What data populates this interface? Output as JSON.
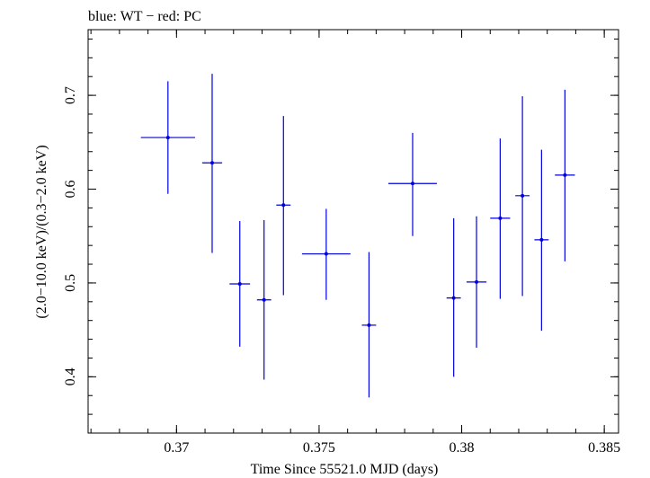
{
  "chart_data": {
    "type": "scatter",
    "title": "blue: WT − red: PC",
    "xlabel": "Time Since 55521.0 MJD (days)",
    "ylabel": "(2.0−10.0 keV)/(0.3−2.0 keV)",
    "xlim": [
      0.3669,
      0.3855
    ],
    "ylim": [
      0.34,
      0.77
    ],
    "x_ticks": [
      {
        "value": 0.37,
        "label": "0.37"
      },
      {
        "value": 0.375,
        "label": "0.375"
      },
      {
        "value": 0.38,
        "label": "0.38"
      },
      {
        "value": 0.385,
        "label": "0.385"
      }
    ],
    "y_ticks": [
      {
        "value": 0.4,
        "label": "0.4"
      },
      {
        "value": 0.5,
        "label": "0.5"
      },
      {
        "value": 0.6,
        "label": "0.6"
      },
      {
        "value": 0.7,
        "label": "0.7"
      }
    ],
    "series": [
      {
        "name": "WT",
        "color": "#0000dd",
        "points": [
          {
            "x": 0.3697,
            "xerr": 0.00095,
            "y": 0.655,
            "ylo": 0.595,
            "yhi": 0.715
          },
          {
            "x": 0.37125,
            "xerr": 0.00035,
            "y": 0.628,
            "ylo": 0.532,
            "yhi": 0.723
          },
          {
            "x": 0.37222,
            "xerr": 0.00036,
            "y": 0.499,
            "ylo": 0.432,
            "yhi": 0.566
          },
          {
            "x": 0.37307,
            "xerr": 0.00025,
            "y": 0.482,
            "ylo": 0.397,
            "yhi": 0.567
          },
          {
            "x": 0.37375,
            "xerr": 0.00025,
            "y": 0.583,
            "ylo": 0.487,
            "yhi": 0.678
          },
          {
            "x": 0.37525,
            "xerr": 0.00085,
            "y": 0.531,
            "ylo": 0.482,
            "yhi": 0.579
          },
          {
            "x": 0.37675,
            "xerr": 0.00025,
            "y": 0.455,
            "ylo": 0.378,
            "yhi": 0.533
          },
          {
            "x": 0.37828,
            "xerr": 0.00085,
            "y": 0.606,
            "ylo": 0.55,
            "yhi": 0.66
          },
          {
            "x": 0.37972,
            "xerr": 0.00025,
            "y": 0.484,
            "ylo": 0.4,
            "yhi": 0.569
          },
          {
            "x": 0.38052,
            "xerr": 0.00035,
            "y": 0.501,
            "ylo": 0.431,
            "yhi": 0.571
          },
          {
            "x": 0.38135,
            "xerr": 0.00035,
            "y": 0.569,
            "ylo": 0.483,
            "yhi": 0.654
          },
          {
            "x": 0.38213,
            "xerr": 0.00025,
            "y": 0.593,
            "ylo": 0.486,
            "yhi": 0.699
          },
          {
            "x": 0.3828,
            "xerr": 0.00025,
            "y": 0.546,
            "ylo": 0.449,
            "yhi": 0.642
          },
          {
            "x": 0.38362,
            "xerr": 0.00035,
            "y": 0.615,
            "ylo": 0.523,
            "yhi": 0.706
          }
        ]
      }
    ]
  }
}
